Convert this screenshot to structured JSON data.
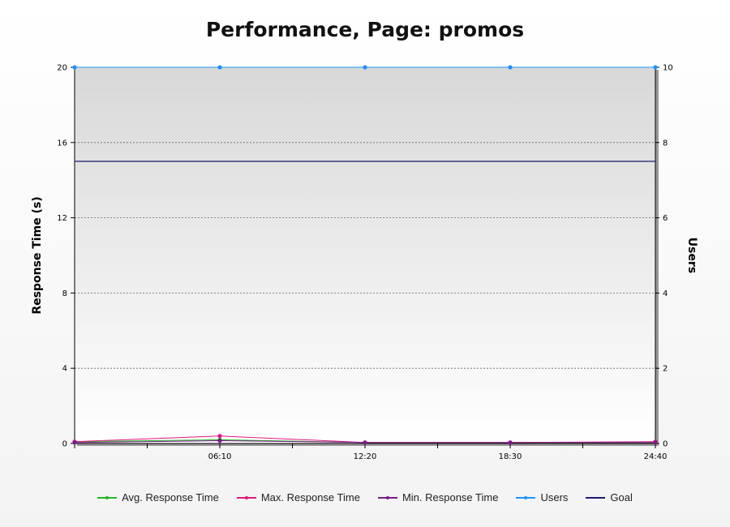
{
  "chart_data": {
    "type": "line",
    "title": "Performance, Page: promos",
    "xlabel": "",
    "ylabel": "Response Time (s)",
    "y2label": "Users",
    "x": [
      0,
      370,
      740,
      1110,
      1480
    ],
    "x_tick_labels": [
      "06:10",
      "12:20",
      "18:30",
      "24:40"
    ],
    "x_tick_positions": [
      370,
      740,
      1110,
      1480
    ],
    "xlim": [
      0,
      1480
    ],
    "ylim": [
      0,
      20
    ],
    "y_ticks": [
      0,
      4,
      8,
      12,
      16,
      20
    ],
    "y2lim": [
      0,
      10
    ],
    "y2_ticks": [
      0,
      2,
      4,
      6,
      8,
      10
    ],
    "grid": true,
    "legend_position": "bottom",
    "series": [
      {
        "name": "Avg. Response Time",
        "axis": "left",
        "color": "#22b822",
        "points": [
          [
            0,
            0.1
          ],
          [
            370,
            0.2
          ],
          [
            740,
            0.05
          ],
          [
            1110,
            0.05
          ],
          [
            1480,
            0.05
          ]
        ]
      },
      {
        "name": "Max. Response Time",
        "axis": "left",
        "color": "#e0197d",
        "points": [
          [
            0,
            0.1
          ],
          [
            370,
            0.4
          ],
          [
            740,
            0.05
          ],
          [
            1110,
            0.05
          ],
          [
            1480,
            0.1
          ]
        ]
      },
      {
        "name": "Min. Response Time",
        "axis": "left",
        "color": "#7a1a8a",
        "points": [
          [
            0,
            0.05
          ],
          [
            370,
            0.15
          ],
          [
            740,
            0.05
          ],
          [
            1110,
            0.05
          ],
          [
            1480,
            0.05
          ]
        ]
      },
      {
        "name": "Users",
        "axis": "right",
        "color": "#1e90ff",
        "points": [
          [
            0,
            10
          ],
          [
            370,
            10
          ],
          [
            740,
            10
          ],
          [
            1110,
            10
          ],
          [
            1480,
            10
          ]
        ]
      },
      {
        "name": "Goal",
        "axis": "left",
        "color": "#191970",
        "points": [
          [
            0,
            15
          ],
          [
            1480,
            15
          ]
        ],
        "markers": false
      }
    ]
  }
}
